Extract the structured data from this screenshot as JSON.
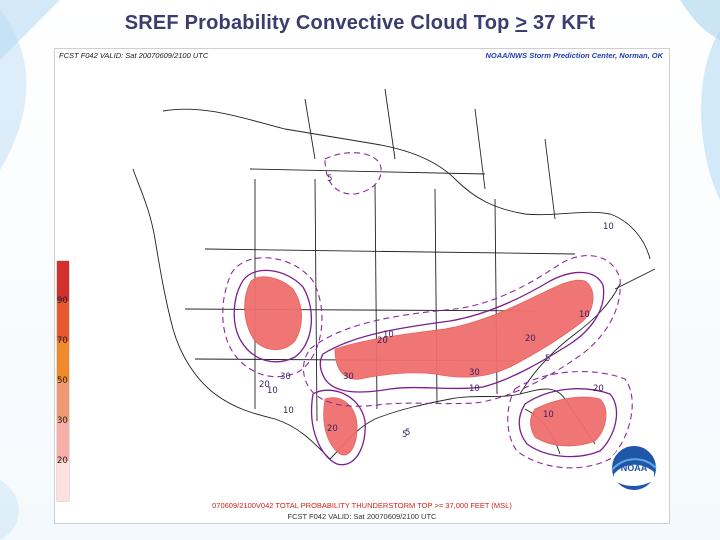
{
  "slide": {
    "title_main": "SREF Probability Convective Cloud Top ",
    "title_ge": ">",
    "title_tail": " 37 KFt"
  },
  "map": {
    "header_left": "FCST F042  VALID: Sat 20070609/2100 UTC",
    "header_right": "NOAA/NWS Storm Prediction Center, Norman, OK",
    "footer_line1": "070609/2100V042  TOTAL PROBABILITY THUNDERSTORM TOP >= 37,000 FEET (MSL)",
    "footer_line2": "FCST F042  VALID: Sat 20070609/2100 UTC",
    "scale_labels": [
      "90",
      "70",
      "50",
      "30",
      "20"
    ],
    "contour_labels": [
      "5",
      "10",
      "10",
      "20",
      "30",
      "20",
      "30",
      "10",
      "10",
      "5",
      "30",
      "20",
      "10",
      "5",
      "20",
      "10",
      "20",
      "5",
      "10"
    ],
    "colors": {
      "fill": "#ef6f6d",
      "fill_edge": "#e55a58",
      "contour": "#7a1f8f",
      "dashed": "#8b2a9b",
      "boundary": "#222222",
      "scale_top": "#d4302e",
      "scale_mid": "#f08a2a",
      "scale_low": "#f6b0a8"
    }
  },
  "logo": {
    "text": "NOAA"
  }
}
